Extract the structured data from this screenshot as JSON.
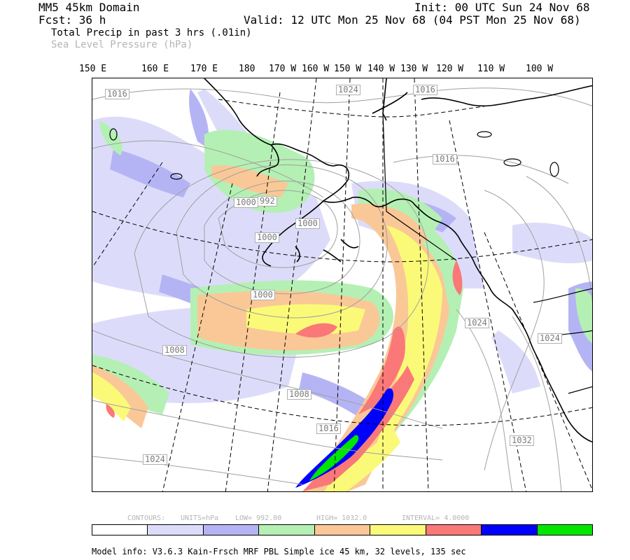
{
  "header": {
    "model": "MM5 45km Domain",
    "init": "Init: 00 UTC Sun 24 Nov 68",
    "fcst": "Fcst:  36 h",
    "valid": "Valid: 12 UTC Mon 25 Nov 68 (04 PST Mon 25 Nov 68)",
    "field1": "Total Precip in past 3 hrs (.01in)",
    "field2": "Sea Level Pressure (hPa)"
  },
  "longitudes": [
    "150 E",
    "160 E",
    "170 E",
    "180",
    "170 W",
    "160 W",
    "150 W",
    "140 W",
    "130 W",
    "120 W",
    "110 W",
    "100 W"
  ],
  "contour_labels": [
    "1016",
    "1024",
    "1016",
    "1016",
    "1000",
    "992",
    "1000",
    "1000",
    "1000",
    "1008",
    "1008",
    "1016",
    "1024",
    "1024",
    "1024",
    "1032"
  ],
  "contour_info": {
    "contours": "CONTOURS:",
    "units": "UNITS=hPa",
    "low": "LOW=  992.00",
    "high": "HIGH=  1032.0",
    "interval": "INTERVAL=   4.0000"
  },
  "colorbar": [
    "#ffffff",
    "#dcdcfa",
    "#b4b4f5",
    "#b4f0b4",
    "#fac896",
    "#fafa78",
    "#fa7878",
    "#0000ff",
    "#00e600"
  ],
  "footer": "Model info: V3.6.3 Kain-Frsch MRF PBL    Simple ice   45 km,  32 levels,  135 sec"
}
